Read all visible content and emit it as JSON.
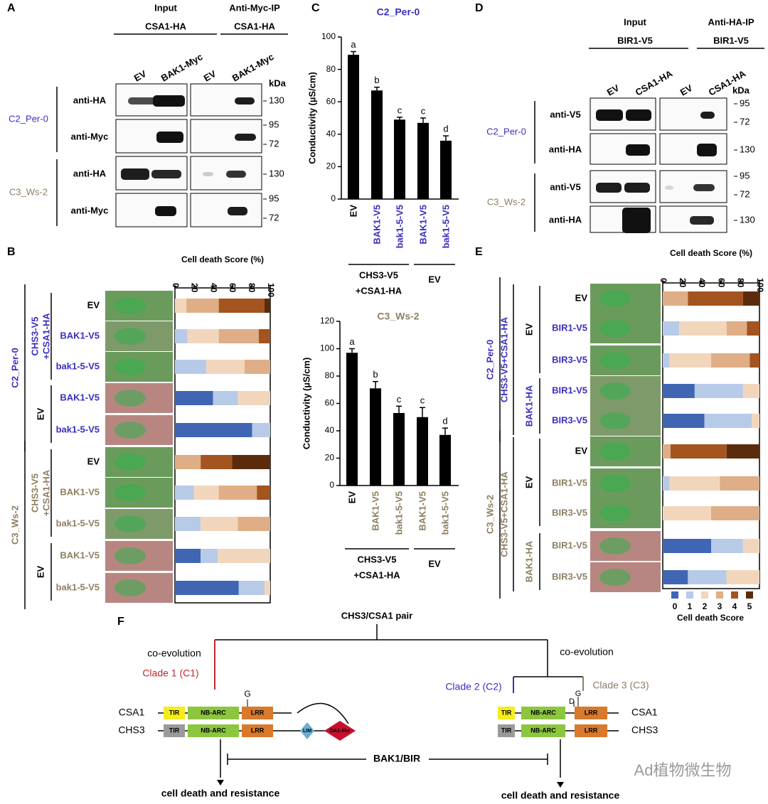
{
  "panel_labels": [
    "A",
    "B",
    "C",
    "D",
    "E",
    "F"
  ],
  "blot_a": {
    "input": {
      "title": "Input",
      "construct": "CSA1-HA"
    },
    "ip": {
      "title": "Anti-Myc-IP",
      "construct": "CSA1-HA"
    },
    "lanes": [
      "EV",
      "BAK1-Myc",
      "EV",
      "BAK1-Myc"
    ],
    "kda": "kDa",
    "groups": [
      {
        "label": "C2_Per-0",
        "color": "#3b2fbf",
        "rows": [
          {
            "antibody": "anti-HA",
            "markers": [
              130
            ]
          },
          {
            "antibody": "anti-Myc",
            "markers": [
              95,
              72
            ]
          }
        ]
      },
      {
        "label": "C3_Ws-2",
        "color": "#8d7f62",
        "rows": [
          {
            "antibody": "anti-HA",
            "markers": [
              130
            ]
          },
          {
            "antibody": "anti-Myc",
            "markers": [
              95,
              72
            ]
          }
        ]
      }
    ]
  },
  "blot_d": {
    "input": {
      "title": "Input",
      "construct": "BIR1-V5"
    },
    "ip": {
      "title": "Anti-HA-IP",
      "construct": "BIR1-V5"
    },
    "lanes": [
      "EV",
      "CSA1-HA",
      "EV",
      "CSA1-HA"
    ],
    "kda": "kDa",
    "groups": [
      {
        "label": "C2_Per-0",
        "color": "#3b2fbf",
        "rows": [
          {
            "antibody": "anti-V5",
            "markers": [
              95,
              72
            ]
          },
          {
            "antibody": "anti-HA",
            "markers": [
              130
            ]
          }
        ]
      },
      {
        "label": "C3_Ws-2",
        "color": "#8d7f62",
        "rows": [
          {
            "antibody": "anti-V5",
            "markers": [
              95,
              72
            ]
          },
          {
            "antibody": "anti-HA",
            "markers": [
              130
            ]
          }
        ]
      }
    ]
  },
  "chart_data": [
    {
      "type": "stacked_bar",
      "title": "Cell death Score (%)",
      "xlim": [
        0,
        100
      ],
      "xticks": [
        0,
        20,
        40,
        60,
        80,
        100
      ],
      "categories": [
        "EV",
        "BAK1-V5",
        "bak1-5-V5",
        "BAK1-V5",
        "bak1-5-V5",
        "EV",
        "BAK1-V5",
        "bak1-5-V5",
        "BAK1-V5",
        "bak1-5-V5"
      ],
      "category_colors": [
        "#000000",
        "#3b2fbf",
        "#3b2fbf",
        "#3b2fbf",
        "#3b2fbf",
        "#000000",
        "#8d7f62",
        "#8d7f62",
        "#8d7f62",
        "#8d7f62"
      ],
      "groups": [
        {
          "label": "C2_Per-0",
          "color": "#3b2fbf",
          "subgroups": [
            {
              "label": [
                "CHS3-V5",
                "+CSA1-HA"
              ],
              "color": "#3b2fbf"
            },
            {
              "label": [
                "EV"
              ],
              "color": "#000000"
            }
          ]
        },
        {
          "label": "C3_Ws-2",
          "color": "#8d7f62",
          "subgroups": [
            {
              "label": [
                "CHS3-V5",
                "+CSA1-HA"
              ],
              "color": "#8d7f62"
            },
            {
              "label": [
                "EV"
              ],
              "color": "#000000"
            }
          ]
        }
      ],
      "series": [
        {
          "color": "#4066b3",
          "values": [
            0,
            0,
            0,
            40,
            81,
            0,
            0,
            0,
            27,
            67
          ]
        },
        {
          "color": "#b7cae8",
          "values": [
            0,
            13,
            33,
            26,
            19,
            0,
            20,
            27,
            18,
            27
          ]
        },
        {
          "color": "#f2d6bc",
          "values": [
            12,
            33,
            40,
            34,
            0,
            0,
            26,
            39,
            55,
            6
          ]
        },
        {
          "color": "#dfae86",
          "values": [
            34,
            42,
            27,
            0,
            0,
            27,
            40,
            34,
            0,
            0
          ]
        },
        {
          "color": "#a3541f",
          "values": [
            48,
            12,
            0,
            0,
            0,
            33,
            14,
            0,
            0,
            0
          ]
        },
        {
          "color": "#5a2c0c",
          "values": [
            6,
            0,
            0,
            0,
            0,
            40,
            0,
            0,
            0,
            0
          ]
        }
      ]
    },
    {
      "type": "bar",
      "title": "C2_Per-0",
      "title_color": "#3b2fbf",
      "ylabel": "Conductivity (µS/cm)",
      "color": "#000000",
      "ylim": [
        0,
        100
      ],
      "yticks": [
        0,
        20,
        40,
        60,
        80,
        100
      ],
      "categories": [
        "EV",
        "BAK1-V5",
        "bak1-5-V5",
        "BAK1-V5",
        "bak1-5-V5"
      ],
      "category_colors": [
        "#000000",
        "#3b2fbf",
        "#3b2fbf",
        "#3b2fbf",
        "#3b2fbf"
      ],
      "values": [
        89,
        67,
        49,
        47,
        36
      ],
      "errors": [
        2,
        2,
        1.5,
        3,
        3
      ],
      "annotations": [
        "a",
        "b",
        "c",
        "c",
        "d"
      ],
      "groups": [
        {
          "label": [
            "CHS3-V5",
            "+CSA1-HA"
          ]
        },
        {
          "label": [
            "EV"
          ]
        }
      ]
    },
    {
      "type": "bar",
      "title": "C3_Ws-2",
      "title_color": "#8d7f62",
      "ylabel": "Conductivity (µS/cm)",
      "color": "#000000",
      "ylim": [
        0,
        120
      ],
      "yticks": [
        0,
        20,
        40,
        60,
        80,
        100,
        120
      ],
      "categories": [
        "EV",
        "BAK1-V5",
        "bak1-5-V5",
        "BAK1-V5",
        "bak1-5-V5"
      ],
      "category_colors": [
        "#000000",
        "#8d7f62",
        "#8d7f62",
        "#8d7f62",
        "#8d7f62"
      ],
      "values": [
        97,
        71,
        53,
        50,
        37
      ],
      "errors": [
        3,
        5,
        5,
        7,
        5
      ],
      "annotations": [
        "a",
        "b",
        "c",
        "c",
        "d"
      ],
      "groups": [
        {
          "label": [
            "CHS3-V5",
            "+CSA1-HA"
          ]
        },
        {
          "label": [
            "EV"
          ]
        }
      ]
    },
    {
      "type": "stacked_bar",
      "title": "Cell death Score (%)",
      "xlim": [
        0,
        100
      ],
      "xticks": [
        0,
        20,
        40,
        60,
        80,
        100
      ],
      "legend_title": "Cell death Score",
      "categories": [
        "EV",
        "BIR1-V5",
        "BIR3-V5",
        "BIR1-V5",
        "BIR3-V5",
        "EV",
        "BIR1-V5",
        "BIR3-V5",
        "BIR1-V5",
        "BIR3-V5"
      ],
      "category_colors": [
        "#000000",
        "#3b2fbf",
        "#3b2fbf",
        "#3b2fbf",
        "#3b2fbf",
        "#000000",
        "#8d7f62",
        "#8d7f62",
        "#8d7f62",
        "#8d7f62"
      ],
      "groups": [
        {
          "label": "C2_Per-0",
          "color": "#3b2fbf",
          "construct": "CHS3-V5+CSA1-HA",
          "subgroups": [
            {
              "label": [
                "EV"
              ],
              "color": "#000000"
            },
            {
              "label": [
                "BAK1-HA"
              ],
              "color": "#3b2fbf"
            }
          ]
        },
        {
          "label": "C3_Ws-2",
          "color": "#8d7f62",
          "construct": "CHS3-V5+CSA1-HA",
          "subgroups": [
            {
              "label": [
                "EV"
              ],
              "color": "#000000"
            },
            {
              "label": [
                "BAK1-HA"
              ],
              "color": "#8d7f62"
            }
          ]
        }
      ],
      "series": [
        {
          "name": "0",
          "color": "#4066b3",
          "values": [
            0,
            0,
            0,
            33,
            43,
            0,
            0,
            0,
            50,
            26
          ]
        },
        {
          "name": "1",
          "color": "#b7cae8",
          "values": [
            0,
            17,
            7,
            50,
            49,
            0,
            7,
            0,
            33,
            40
          ]
        },
        {
          "name": "2",
          "color": "#f2d6bc",
          "values": [
            0,
            49,
            43,
            17,
            8,
            0,
            52,
            50,
            17,
            34
          ]
        },
        {
          "name": "3",
          "color": "#dfae86",
          "values": [
            26,
            21,
            40,
            0,
            0,
            8,
            41,
            50,
            0,
            0
          ]
        },
        {
          "name": "4",
          "color": "#a3541f",
          "values": [
            57,
            13,
            10,
            0,
            0,
            58,
            0,
            0,
            0,
            0
          ]
        },
        {
          "name": "5",
          "color": "#5a2c0c",
          "values": [
            17,
            0,
            0,
            0,
            0,
            34,
            0,
            0,
            0,
            0
          ]
        }
      ]
    }
  ],
  "diagram_f": {
    "root": "CHS3/CSA1 pair",
    "coevolution_left": "co-evolution",
    "clade1": "Clade 1 (C1)",
    "coevolution_right": "co-evolution",
    "clade2": "Clade 2 (C2)",
    "clade3": "Clade 3 (C3)",
    "proteins": [
      "CSA1",
      "CHS3"
    ],
    "domains": {
      "tir": "TIR",
      "nbarc": "NB-ARC",
      "lrr": "LRR",
      "lim": "LIM",
      "da1": "DA1-like"
    },
    "residue_g": "G",
    "residue_d": "D",
    "interaction": "BAK1/BIR",
    "outcome": "cell death and resistance"
  },
  "watermark": "Ad植物微生物"
}
